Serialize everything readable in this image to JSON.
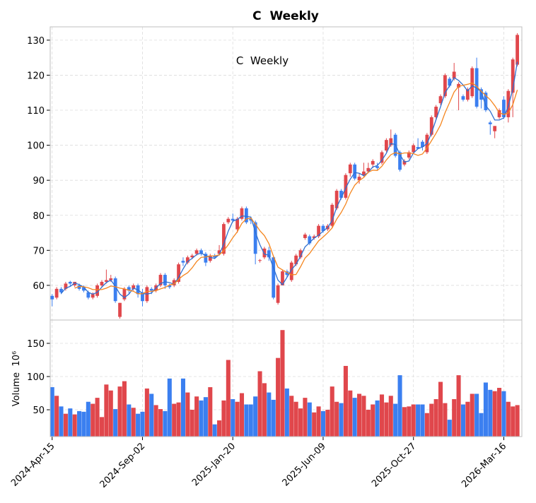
{
  "chart_data": {
    "type": "candlestick",
    "title": "C  Weekly",
    "annotation": "C  Weekly",
    "volume_ylabel": "Volume  10⁶",
    "up_color": "#e0474c",
    "down_color": "#3b7ff0",
    "grid": true,
    "x": [
      "2024-Apr-15",
      "2024-Apr-22",
      "2024-Apr-29",
      "2024-May-06",
      "2024-May-13",
      "2024-May-20",
      "2024-May-27",
      "2024-Jun-03",
      "2024-Jun-10",
      "2024-Jun-17",
      "2024-Jun-24",
      "2024-Jul-01",
      "2024-Jul-08",
      "2024-Jul-15",
      "2024-Jul-22",
      "2024-Jul-29",
      "2024-Aug-05",
      "2024-Aug-12",
      "2024-Aug-19",
      "2024-Aug-26",
      "2024-Sep-02",
      "2024-Sep-09",
      "2024-Sep-16",
      "2024-Sep-23",
      "2024-Sep-30",
      "2024-Oct-07",
      "2024-Oct-14",
      "2024-Oct-21",
      "2024-Oct-28",
      "2024-Nov-04",
      "2024-Nov-11",
      "2024-Nov-18",
      "2024-Nov-25",
      "2024-Dec-02",
      "2024-Dec-09",
      "2024-Dec-16",
      "2024-Dec-23",
      "2024-Dec-30",
      "2025-Jan-06",
      "2025-Jan-13",
      "2025-Jan-20",
      "2025-Jan-27",
      "2025-Feb-03",
      "2025-Feb-10",
      "2025-Feb-17",
      "2025-Feb-24",
      "2025-Mar-03",
      "2025-Mar-10",
      "2025-Mar-17",
      "2025-Mar-24",
      "2025-Mar-31",
      "2025-Apr-07",
      "2025-Apr-14",
      "2025-Apr-21",
      "2025-Apr-28",
      "2025-May-05",
      "2025-May-12",
      "2025-May-19",
      "2025-May-26",
      "2025-Jun-02",
      "2025-Jun-09",
      "2025-Jun-16",
      "2025-Jun-23",
      "2025-Jun-30",
      "2025-Jul-07",
      "2025-Jul-14",
      "2025-Jul-21",
      "2025-Jul-28",
      "2025-Aug-04",
      "2025-Aug-11",
      "2025-Aug-18",
      "2025-Aug-25",
      "2025-Sep-01",
      "2025-Sep-08",
      "2025-Sep-15",
      "2025-Sep-22",
      "2025-Sep-29",
      "2025-Oct-06",
      "2025-Oct-13",
      "2025-Oct-20",
      "2025-Oct-27",
      "2025-Nov-03",
      "2025-Nov-10",
      "2025-Nov-17",
      "2025-Nov-24",
      "2025-Dec-01",
      "2025-Dec-08",
      "2025-Dec-15",
      "2025-Dec-22",
      "2025-Dec-29",
      "2026-Jan-05",
      "2026-Jan-12",
      "2026-Jan-19",
      "2026-Jan-26",
      "2026-Feb-02",
      "2026-Feb-09",
      "2026-Feb-16",
      "2026-Feb-23",
      "2026-Mar-02",
      "2026-Mar-09",
      "2026-Mar-16",
      "2026-Mar-23",
      "2026-Mar-30",
      "2026-Apr-06"
    ],
    "open": [
      57,
      56.5,
      59,
      59,
      61,
      60,
      60,
      59.5,
      58,
      56.5,
      57,
      60,
      61,
      61.5,
      62,
      51,
      56,
      59.5,
      59,
      60,
      58,
      55.5,
      59,
      58.5,
      60,
      63,
      60,
      60,
      61,
      67,
      66.5,
      68,
      69,
      70,
      69,
      67,
      68.5,
      69,
      69,
      78,
      79,
      76,
      79,
      82,
      79,
      78,
      67,
      68,
      70,
      68,
      55,
      60,
      64,
      61.5,
      66,
      68,
      73.5,
      74,
      73.5,
      74,
      77,
      76,
      77,
      82,
      87,
      85,
      92,
      94.5,
      90,
      91.5,
      92.5,
      94.5,
      94,
      95,
      98.5,
      100,
      103,
      98,
      94.5,
      96.5,
      98,
      99.5,
      101,
      98,
      103,
      108,
      112,
      114,
      119,
      119,
      116.5,
      114,
      113,
      114,
      122,
      116,
      115,
      106.5,
      104,
      108,
      113,
      108,
      115,
      123
    ],
    "high": [
      57.5,
      59.5,
      59.5,
      61,
      61.3,
      61,
      60.5,
      60,
      58.5,
      58,
      60.5,
      61.5,
      64.5,
      63,
      62.5,
      55,
      59.5,
      60,
      60.5,
      60.5,
      59,
      60,
      59.5,
      60.5,
      63.5,
      63.5,
      60.5,
      62,
      66.5,
      68,
      68.5,
      69,
      70.5,
      70.5,
      69.5,
      69,
      69,
      71.5,
      78,
      79.5,
      80.5,
      79.5,
      82.5,
      82.5,
      79.5,
      78.5,
      67.5,
      71,
      71,
      68.5,
      60.5,
      64.5,
      64.5,
      67,
      69,
      70.5,
      75,
      74.5,
      74.5,
      77.5,
      77.5,
      77.5,
      83.5,
      87.5,
      87.5,
      92,
      95,
      95,
      92,
      95,
      95,
      96,
      95,
      98.5,
      102,
      104.5,
      103.5,
      98.5,
      96,
      98.5,
      100.5,
      102,
      101.5,
      103.5,
      108.5,
      111.5,
      114.5,
      120.5,
      119.5,
      123.5,
      118,
      114.5,
      116.5,
      122.5,
      125,
      116.5,
      115.5,
      107,
      105.5,
      110.5,
      114,
      116,
      125,
      132
    ],
    "low": [
      54,
      56,
      57.5,
      58.5,
      59.8,
      59.5,
      58.5,
      58,
      56,
      56,
      56.5,
      59.5,
      60.5,
      61,
      55,
      50.5,
      55.5,
      57.5,
      58.5,
      56.5,
      54,
      55,
      57.5,
      58,
      59.5,
      59,
      59,
      59.5,
      60.5,
      65.5,
      66,
      67.5,
      68.5,
      68.5,
      65.5,
      66.5,
      67.5,
      68.5,
      68.5,
      77.5,
      78,
      75,
      78.5,
      77.5,
      77.5,
      66,
      66.5,
      67.5,
      67,
      56,
      54.5,
      60,
      62.5,
      61,
      65.5,
      67.5,
      73,
      71.5,
      73,
      73.5,
      75,
      75.5,
      76.5,
      81.5,
      84.5,
      84.5,
      91,
      90,
      89,
      91,
      92,
      93.5,
      93,
      94.5,
      98,
      99.5,
      96.5,
      92.5,
      94,
      96,
      97.5,
      99,
      98.5,
      97.5,
      102.5,
      107.5,
      111.5,
      113.5,
      116.5,
      118.5,
      110,
      112.5,
      112.5,
      113.5,
      110.5,
      110.5,
      109.5,
      103,
      102,
      107.5,
      107.5,
      106.5,
      108,
      122.5
    ],
    "close": [
      56,
      59,
      58,
      60.5,
      60.5,
      61,
      59,
      58.5,
      56.5,
      57.5,
      60,
      61,
      61.5,
      62,
      55.5,
      55,
      59,
      58.5,
      60,
      57.5,
      55.5,
      59.5,
      58.5,
      60,
      63,
      60,
      59.5,
      61.5,
      66,
      66.5,
      68,
      68.5,
      70,
      69,
      66.5,
      68.5,
      68,
      70,
      77.5,
      79,
      78.5,
      79,
      82,
      78,
      78.5,
      69,
      67.2,
      70.5,
      68,
      56.5,
      60,
      64,
      63,
      66.5,
      68.5,
      70,
      74.5,
      72,
      74,
      77,
      75.5,
      77,
      83,
      87,
      85,
      91.5,
      94.5,
      90.5,
      91,
      92.5,
      93.5,
      95.5,
      93.5,
      98,
      101.5,
      102,
      97,
      93,
      95.5,
      98,
      100,
      99,
      99.5,
      103,
      108,
      111,
      114,
      120,
      117,
      121,
      117.5,
      113,
      116,
      122,
      111,
      113,
      110,
      106,
      105.5,
      110,
      108,
      115.5,
      124.5,
      131.5
    ],
    "volume": [
      84,
      71,
      55,
      44,
      52,
      43,
      48,
      47,
      62,
      59,
      68,
      39,
      88,
      79,
      51,
      85,
      93,
      58,
      53,
      44,
      47,
      82,
      74,
      57,
      51,
      48,
      97,
      59,
      61,
      97,
      76,
      50,
      70,
      64,
      69,
      84,
      28,
      34,
      64,
      125,
      66,
      62,
      75,
      58,
      58,
      70,
      108,
      90,
      76,
      65,
      128,
      170,
      82,
      71,
      62,
      52,
      68,
      61,
      46,
      55,
      48,
      50,
      85,
      62,
      60,
      116,
      79,
      68,
      74,
      71,
      50,
      58,
      64,
      73,
      61,
      71,
      59,
      102,
      54,
      55,
      58,
      58,
      58,
      45,
      59,
      66,
      92,
      60,
      35,
      66,
      102,
      58,
      62,
      74,
      74,
      45,
      91,
      80,
      78,
      83,
      78,
      62,
      55,
      57
    ],
    "lines": [
      {
        "color": "#2f6fd0",
        "values": [
          null,
          null,
          57.7,
          59.2,
          59.7,
          60.7,
          60.2,
          59.5,
          58,
          57.5,
          58,
          59.5,
          60.8,
          61.5,
          59.7,
          57.5,
          56.5,
          57.5,
          59.2,
          58.7,
          57.7,
          57.5,
          57.8,
          59.3,
          60.5,
          61,
          60.8,
          60.3,
          62.3,
          64.7,
          66.8,
          67.7,
          68.8,
          69.2,
          68.5,
          68,
          67.7,
          68.8,
          71.8,
          75.5,
          78.3,
          78.8,
          79.8,
          79.7,
          79.5,
          75.2,
          71.6,
          68.9,
          68.6,
          65,
          61.5,
          60.2,
          62.3,
          64.5,
          66,
          68.3,
          71,
          72.2,
          73.5,
          74.3,
          75.5,
          76.5,
          78.5,
          82.3,
          85,
          87.8,
          90.3,
          92.2,
          92,
          91.3,
          92.3,
          93.8,
          94.2,
          95.7,
          97.7,
          100.5,
          100.2,
          97.3,
          95.2,
          95.5,
          97.8,
          99,
          99.5,
          100.5,
          103.5,
          107.3,
          111,
          115,
          117,
          119.3,
          118.5,
          117.2,
          115.5,
          117,
          116.3,
          115.3,
          111.3,
          109.7,
          107.2,
          107.2,
          107.8,
          111.2,
          116,
          123.8
        ]
      },
      {
        "color": "#f5861f",
        "values": [
          null,
          null,
          null,
          null,
          null,
          59.2,
          59.7,
          59.6,
          59.3,
          58.8,
          58.8,
          58.8,
          59.2,
          59.8,
          59.6,
          59.2,
          59,
          58.6,
          58.3,
          57.6,
          57.6,
          58.3,
          58.3,
          58.5,
          59,
          59.4,
          60.1,
          60.4,
          61.7,
          62.8,
          63.6,
          65,
          66.8,
          68,
          68.1,
          68.4,
          68.4,
          68.7,
          69.9,
          71.6,
          73.6,
          75.3,
          77.7,
          79,
          79.2,
          77.5,
          75.6,
          74.2,
          71.9,
          68.3,
          65.2,
          64.4,
          63.7,
          63,
          63.1,
          65.3,
          67.8,
          69.1,
          70.9,
          72.7,
          73.8,
          75,
          76.4,
          78.9,
          80.8,
          83.2,
          86.3,
          88.6,
          89.9,
          90.8,
          92.3,
          92.9,
          92.8,
          94,
          95.8,
          97.3,
          97.9,
          97.5,
          97.8,
          97.8,
          97.6,
          97.1,
          97.5,
          99.2,
          101.3,
          103.4,
          105.8,
          109.3,
          112.2,
          115.2,
          116.8,
          117.1,
          117.4,
          117.8,
          116.8,
          115.4,
          114.2,
          113,
          111.3,
          109.3,
          108.8,
          109.2,
          111.6,
          115.8
        ]
      }
    ],
    "xlim": [
      "2024-Apr-12",
      "2026-Apr-13"
    ],
    "xticks": [
      "2024-Apr-15",
      "2024-Sep-02",
      "2025-Jan-20",
      "2025-Jun-09",
      "2025-Oct-27",
      "2026-Mar-16"
    ],
    "ylim": [
      50.1,
      133.8
    ],
    "yticks": [
      60,
      70,
      80,
      90,
      100,
      110,
      120,
      130
    ],
    "volume_ylim": [
      9.6,
      185.1
    ],
    "volume_yticks": [
      50,
      100,
      150
    ]
  }
}
